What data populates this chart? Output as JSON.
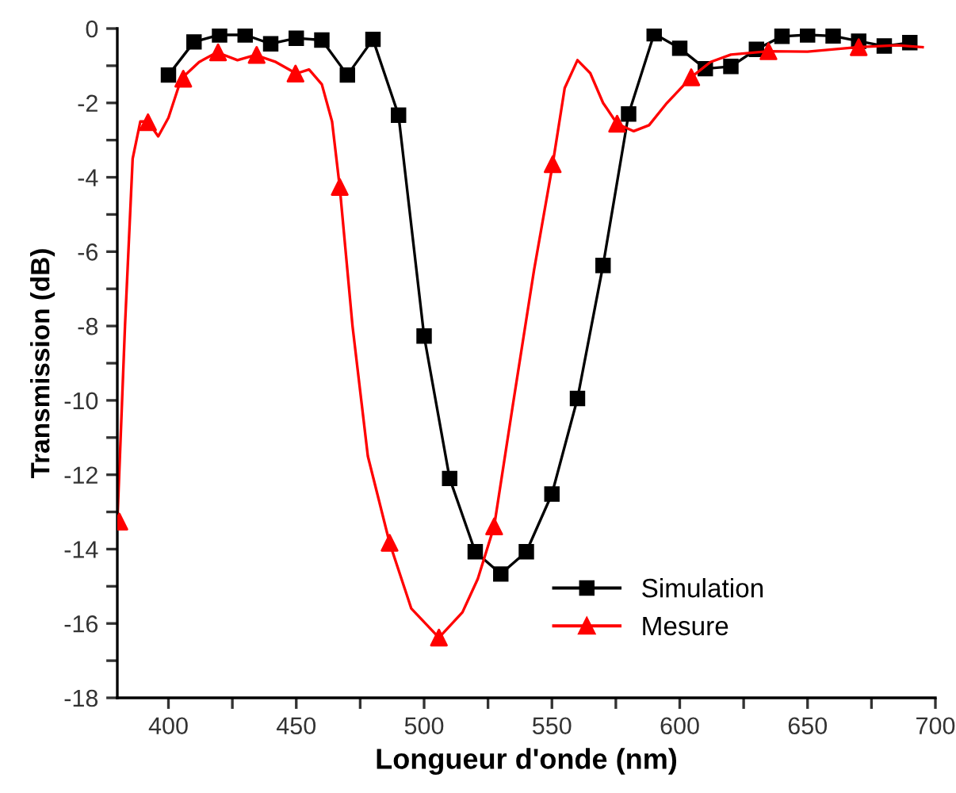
{
  "chart_data": {
    "type": "line",
    "xlabel": "Longueur d'onde (nm)",
    "ylabel": "Transmission (dB)",
    "xlim": [
      380,
      700
    ],
    "ylim": [
      -18,
      0
    ],
    "xticks": [
      400,
      {
        "value": 425,
        "label": null
      },
      450,
      {
        "value": 475,
        "label": null
      },
      500,
      {
        "value": 525,
        "label": null
      },
      550,
      {
        "value": 575,
        "label": null
      },
      600,
      {
        "value": 625,
        "label": null
      },
      650,
      {
        "value": 675,
        "label": null
      },
      700
    ],
    "yticks": [
      -18,
      {
        "value": -17,
        "label": null
      },
      -16,
      {
        "value": -15,
        "label": null
      },
      -14,
      {
        "value": -13,
        "label": null
      },
      -12,
      {
        "value": -11,
        "label": null
      },
      -10,
      {
        "value": -9,
        "label": null
      },
      -8,
      {
        "value": -7,
        "label": null
      },
      -6,
      {
        "value": -5,
        "label": null
      },
      -4,
      {
        "value": -3,
        "label": null
      },
      -2,
      {
        "value": -1,
        "label": null
      },
      0
    ],
    "grid": false,
    "legend": "bottom right",
    "series": [
      {
        "name": "Simulation",
        "color": "#000000",
        "marker": "square",
        "x": [
          400,
          410,
          420,
          430,
          440,
          450,
          460,
          470,
          480,
          490,
          500,
          510,
          520,
          530,
          540,
          550,
          560,
          570,
          580,
          590,
          600,
          610,
          620,
          630,
          640,
          650,
          660,
          670,
          680,
          690
        ],
        "values": [
          -1.25,
          -0.36,
          -0.17,
          -0.17,
          -0.41,
          -0.26,
          -0.31,
          -1.25,
          -0.29,
          -2.33,
          -8.27,
          -12.1,
          -14.07,
          -14.67,
          -14.07,
          -12.52,
          -9.95,
          -6.37,
          -2.3,
          -0.14,
          -0.53,
          -1.08,
          -1.02,
          -0.56,
          -0.21,
          -0.17,
          -0.2,
          -0.34,
          -0.47,
          -0.38
        ]
      },
      {
        "color": "#ff0000",
        "marker": "none",
        "x": [
          380,
          383,
          386,
          389,
          392,
          396,
          400,
          405,
          412,
          419,
          427,
          434,
          442,
          450,
          455,
          460,
          464,
          467,
          472,
          478,
          486.5,
          495,
          505.8,
          515,
          521,
          527.4,
          535,
          543,
          550.3,
          555,
          560,
          565,
          570,
          575.5,
          582,
          588,
          595,
          604.5,
          612,
          620,
          634.7,
          650,
          670,
          685,
          695
        ],
        "values": [
          -13.3,
          -8,
          -3.5,
          -2.5,
          -2.5,
          -2.9,
          -2.4,
          -1.35,
          -0.9,
          -0.64,
          -0.85,
          -0.71,
          -0.9,
          -1.21,
          -1.1,
          -1.5,
          -2.5,
          -4.26,
          -8,
          -11.5,
          -13.83,
          -15.6,
          -16.38,
          -15.7,
          -14.8,
          -13.39,
          -10,
          -6.5,
          -3.65,
          -1.6,
          -0.85,
          -1.2,
          -2.0,
          -2.56,
          -2.76,
          -2.6,
          -2.0,
          -1.31,
          -0.9,
          -0.7,
          -0.61,
          -0.62,
          -0.5,
          -0.45,
          -0.5
        ]
      },
      {
        "name": "Mesure",
        "type": "scatter",
        "color": "#ff0000",
        "marker": "triangle",
        "x": [
          380.8,
          392,
          405.8,
          419.4,
          434.5,
          449.7,
          467,
          486.5,
          505.8,
          527.4,
          550.3,
          575.5,
          604.5,
          634.7,
          670
        ],
        "values": [
          -13.26,
          -2.52,
          -1.35,
          -0.64,
          -0.71,
          -1.21,
          -4.26,
          -13.83,
          -16.38,
          -13.39,
          -3.65,
          -2.56,
          -1.31,
          -0.61,
          -0.5
        ]
      }
    ]
  }
}
